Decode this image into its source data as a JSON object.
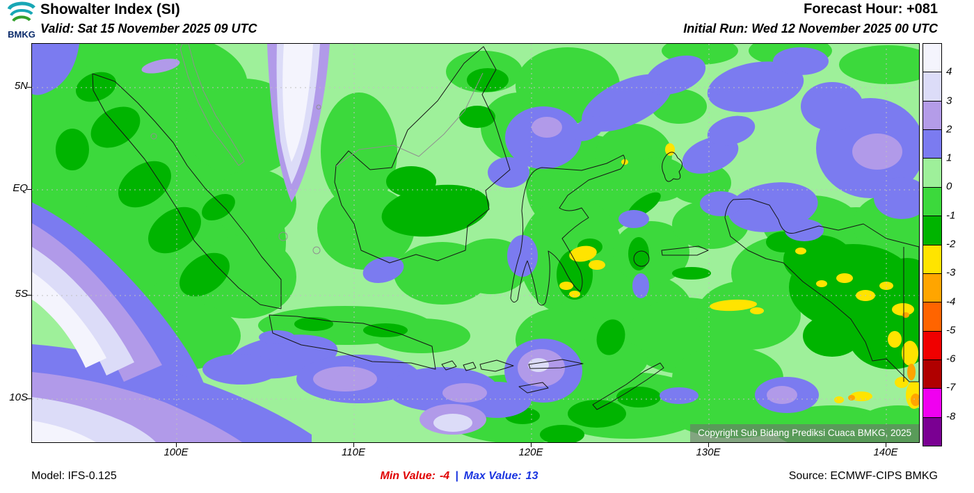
{
  "header": {
    "logo_text": "BMKG",
    "title": "Showalter Index (SI)",
    "valid_line": "Valid: Sat 15 November 2025 09 UTC",
    "forecast_hour": "Forecast Hour: +081",
    "initial_run": "Initial Run: Wed 12 November 2025 00 UTC"
  },
  "map": {
    "lat_labels": [
      "5N",
      "EQ",
      "5S",
      "10S"
    ],
    "lon_labels": [
      "100E",
      "110E",
      "120E",
      "130E",
      "140E"
    ],
    "copyright": "Copyright Sub Bidang Prediksi Cuaca BMKG, 2025"
  },
  "colorbar": {
    "labels": [
      "4",
      "3",
      "2",
      "1",
      "0",
      "-1",
      "-2",
      "-3",
      "-4",
      "-5",
      "-6",
      "-7",
      "-8"
    ],
    "cell_colors": [
      "#f4f4fd",
      "#dcdcf8",
      "#b49ce8",
      "#7b7bf0",
      "#9ef09a",
      "#3cd93c",
      "#00b400",
      "#ffe400",
      "#ffa500",
      "#ff6400",
      "#f00000",
      "#b00000",
      "#f000f0",
      "#7a0092"
    ]
  },
  "footer": {
    "model": "Model: IFS-0.125",
    "min_label": "Min Value:",
    "min_value": "-4",
    "separator": "|",
    "max_label": "Max Value:",
    "max_value": "13",
    "source": "Source: ECMWF-CIPS BMKG"
  },
  "map_palette": {
    "light_green": "#9ef09a",
    "green": "#3cd93c",
    "dark_green": "#00b400",
    "blue": "#7b7bf0",
    "purple": "#b19ae9",
    "pale_lavender": "#dcdcf8",
    "near_white": "#f4f4fd",
    "yellow": "#ffe400",
    "orange": "#ffa500"
  }
}
